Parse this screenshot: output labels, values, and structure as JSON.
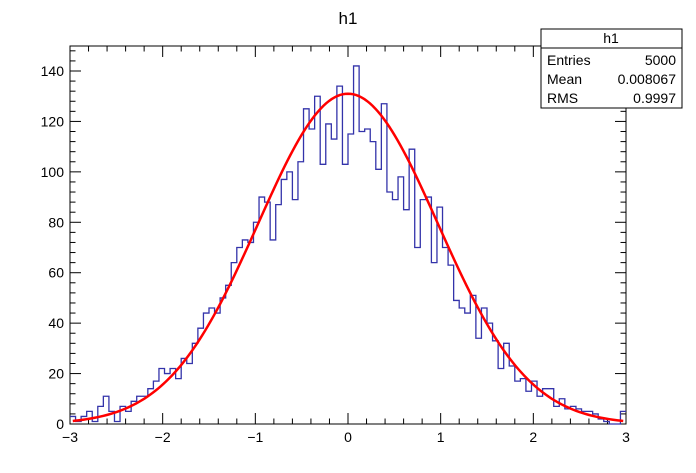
{
  "chart_data": {
    "type": "histogram",
    "title": "h1",
    "xlabel": "",
    "ylabel": "",
    "xlim": [
      -3,
      3
    ],
    "ylim": [
      0,
      150
    ],
    "x_ticks": [
      -3,
      -2,
      -1,
      0,
      1,
      2,
      3
    ],
    "x_tick_labels": [
      "−3",
      "−2",
      "−1",
      "0",
      "1",
      "2",
      "3"
    ],
    "y_ticks": [
      0,
      20,
      40,
      60,
      80,
      100,
      120,
      140
    ],
    "y_tick_labels": [
      "0",
      "20",
      "40",
      "60",
      "80",
      "100",
      "120",
      "140"
    ],
    "bin_range": [
      -3,
      3
    ],
    "bin_counts": [
      3,
      1,
      3,
      5,
      1,
      7,
      11,
      5,
      1,
      7,
      5,
      9,
      11,
      11,
      14,
      17,
      22,
      20,
      22,
      18,
      26,
      24,
      32,
      38,
      44,
      46,
      44,
      50,
      55,
      64,
      70,
      73,
      72,
      80,
      90,
      88,
      73,
      87,
      97,
      100,
      89,
      104,
      125,
      117,
      130,
      103,
      119,
      113,
      134,
      103,
      115,
      142,
      116,
      117,
      112,
      101,
      127,
      92,
      89,
      98,
      85,
      109,
      70,
      89,
      90,
      64,
      86,
      70,
      63,
      49,
      46,
      44,
      51,
      34,
      46,
      40,
      33,
      22,
      32,
      23,
      17,
      18,
      13,
      17,
      11,
      14,
      14,
      7,
      10,
      6,
      7,
      6,
      5,
      5,
      4,
      2,
      1,
      0,
      0,
      5
    ],
    "fit": {
      "type": "gaus",
      "constant": 131,
      "mean": 0.0,
      "sigma": 0.97
    },
    "series_colors": {
      "histogram": "#3333aa",
      "fit": "#ff0000"
    },
    "stats_box": {
      "title": "h1",
      "rows": [
        {
          "label": "Entries",
          "value": "5000"
        },
        {
          "label": "Mean",
          "value": "0.008067"
        },
        {
          "label": "RMS",
          "value": "0.9997"
        }
      ],
      "placement": "top-right"
    }
  }
}
